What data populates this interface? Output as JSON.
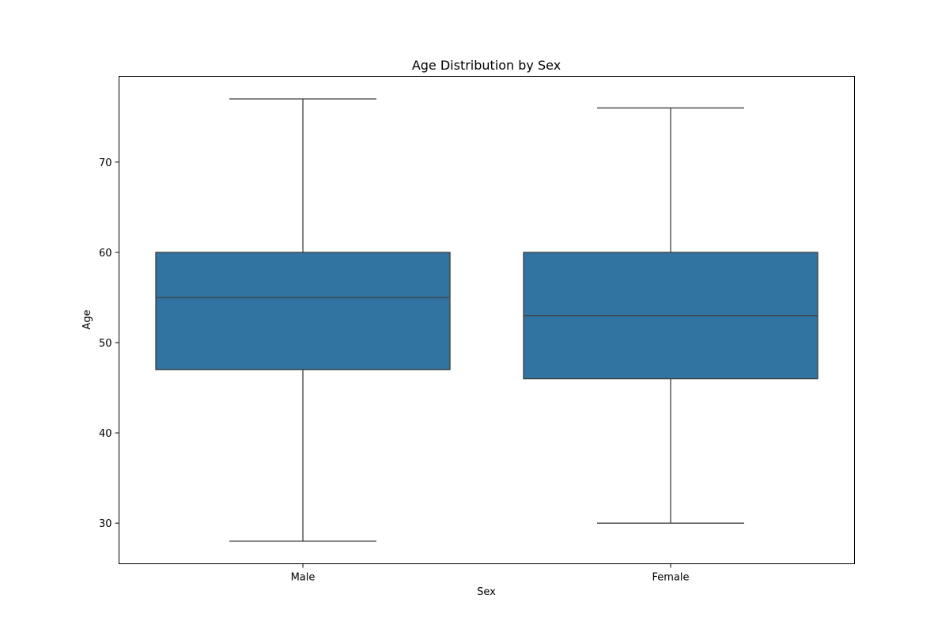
{
  "chart_data": {
    "type": "box",
    "title": "Age Distribution by Sex",
    "xlabel": "Sex",
    "ylabel": "Age",
    "categories": [
      "Male",
      "Female"
    ],
    "boxes": [
      {
        "category": "Male",
        "min": 28,
        "q1": 47,
        "median": 55,
        "q3": 60,
        "max": 77
      },
      {
        "category": "Female",
        "min": 30,
        "q1": 46,
        "median": 53,
        "q3": 60,
        "max": 76
      }
    ],
    "ylim": [
      25.5,
      79.5
    ],
    "yticks": [
      30,
      40,
      50,
      60,
      70
    ],
    "box_color": "#3274a1",
    "line_color": "#3f3f3f",
    "grid": false,
    "legend": "none"
  }
}
